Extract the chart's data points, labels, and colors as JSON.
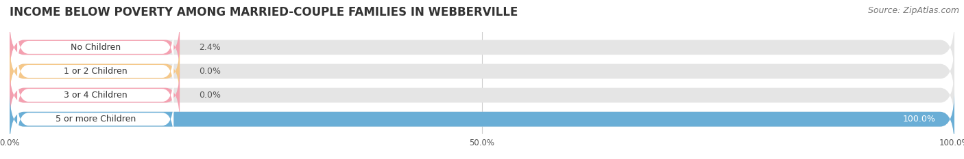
{
  "title": "INCOME BELOW POVERTY AMONG MARRIED-COUPLE FAMILIES IN WEBBERVILLE",
  "source": "Source: ZipAtlas.com",
  "categories": [
    "No Children",
    "1 or 2 Children",
    "3 or 4 Children",
    "5 or more Children"
  ],
  "values": [
    2.4,
    0.0,
    0.0,
    100.0
  ],
  "bar_colors": [
    "#f4a0b0",
    "#f5c88a",
    "#f4a0b0",
    "#6aaed6"
  ],
  "label_colors": [
    "#444444",
    "#444444",
    "#444444",
    "#ffffff"
  ],
  "xlim": [
    0,
    100
  ],
  "xtick_labels": [
    "0.0%",
    "50.0%",
    "100.0%"
  ],
  "background_color": "#ffffff",
  "bar_background_color": "#e5e5e5",
  "title_fontsize": 12,
  "source_fontsize": 9,
  "label_fontsize": 9,
  "value_fontsize": 9
}
